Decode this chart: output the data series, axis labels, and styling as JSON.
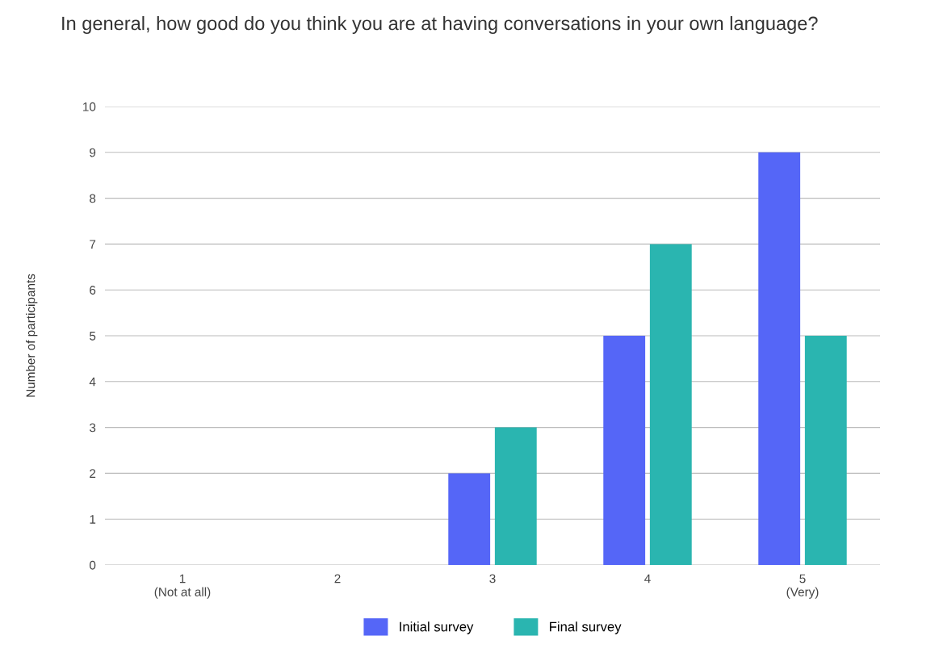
{
  "chart_data": {
    "type": "bar",
    "title": "In general, how good do you think you are at having conversations in your own language?",
    "ylabel": "Number of participants",
    "categories": [
      "1\n(Not at all)",
      "2",
      "3",
      "4",
      "5\n(Very)"
    ],
    "series": [
      {
        "name": "Initial survey",
        "color": "#5566f7",
        "values": [
          0,
          0,
          2,
          5,
          9
        ]
      },
      {
        "name": "Final survey",
        "color": "#2ab5b0",
        "values": [
          0,
          0,
          3,
          7,
          5
        ]
      }
    ],
    "ylim": [
      0,
      10
    ],
    "yticks": [
      0,
      1,
      2,
      3,
      4,
      5,
      6,
      7,
      8,
      9,
      10
    ],
    "grid": "y",
    "legend": "bottom"
  }
}
